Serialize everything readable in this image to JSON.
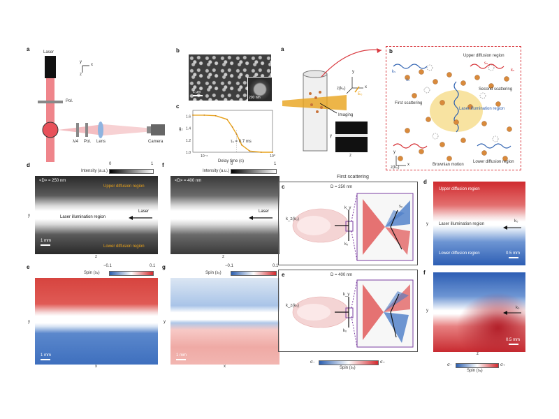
{
  "left_figure": {
    "a": {
      "label": "a",
      "laser": "Laser",
      "pol_top": "Pol.",
      "quarter_wave": "λ/4",
      "pol": "Pol.",
      "lens": "Lens",
      "camera": "Camera",
      "axis_y": "y",
      "axis_x": "x",
      "axis_z": "z"
    },
    "b": {
      "label": "b",
      "scale_main": "1 μm",
      "scale_inset": "200 nm"
    },
    "c": {
      "label": "c",
      "ylabel": "g₂",
      "xlabel": "Delay time (s)",
      "annotation": "τ₀ = 0.7 ms",
      "yticks": [
        "1.6",
        "1.4",
        "1.2",
        "1.0"
      ],
      "xticks": [
        "10⁻⁶",
        "10⁰"
      ]
    },
    "d": {
      "label": "d",
      "cbar_title": "Intensity (a.u.)",
      "cbar_min": "0",
      "cbar_max": "1",
      "size": "<D> = 250 nm",
      "upper": "Upper diffusion region",
      "laser_region": "Laser illumination region",
      "laser": "Laser",
      "lower": "Lower diffusion region",
      "scale": "1 mm",
      "axis_y": "y",
      "axis_z": "z"
    },
    "f": {
      "label": "f",
      "cbar_title": "Intensity (a.u.)",
      "cbar_min": "0",
      "cbar_max": "1",
      "size": "<D> = 400 nm",
      "laser": "Laser",
      "axis_z": "z"
    },
    "e": {
      "label": "e",
      "cbar_title": "Spin (sₓ)",
      "cbar_min": "−0.1",
      "cbar_max": "0.1",
      "scale": "1 mm",
      "axis_y": "y",
      "axis_x": "x"
    },
    "g": {
      "label": "g",
      "cbar_title": "Spin (sₓ)",
      "cbar_min": "−0.1",
      "cbar_max": "0.1",
      "scale": "1 mm",
      "axis_y": "y",
      "axis_x": "x"
    }
  },
  "right_figure": {
    "a": {
      "label": "a",
      "imaging": "Imaging",
      "axis_x": "x",
      "axis_y": "y",
      "axis_z": "z",
      "z_k0": "z(k₀)",
      "e0": "E₀",
      "img_y": "y",
      "img_z": "z"
    },
    "b": {
      "label": "b",
      "upper": "Upper diffusion region",
      "second": "Second scattering",
      "first": "First scattering",
      "laser_region": "Laser illumination region",
      "brownian": "Brownian motion",
      "lower": "Lower diffusion region",
      "ks_left": "kₛ",
      "ss_left": "sₛ",
      "ss_right": "sₛ",
      "ks_right": "kₛ",
      "axis_x": "x",
      "axis_y": "y",
      "axis_z": "z(k₀)"
    },
    "first_scattering_title": "First scattering",
    "c": {
      "label": "c",
      "size": "D = 250 nm",
      "kz": "k_z(k₀)",
      "ky": "k_y",
      "kx": "kₓ",
      "sx": "sₓ"
    },
    "e": {
      "label": "e",
      "size": "D = 400 nm",
      "kz": "k_z(k₀)",
      "ky": "k_y",
      "kx": "kₓ"
    },
    "d": {
      "label": "d",
      "upper": "Upper diffusion region",
      "laser_region": "Laser illumination region",
      "lower": "Lower diffusion region",
      "k0": "k₀",
      "scale": "0.5 mm",
      "axis_y": "y"
    },
    "f": {
      "label": "f",
      "k0": "k₀",
      "scale": "0.5 mm",
      "axis_y": "y",
      "axis_z": "z"
    },
    "cbar_c": {
      "min": "σ₋",
      "max": "σ₊",
      "title": "Spin (sₓ)"
    },
    "cbar_f": {
      "min": "σ₋",
      "max": "σ₊",
      "title": "Spin (sₓ)"
    }
  },
  "colors": {
    "laser_red": "#e8515a",
    "orange": "#e8a21a",
    "blue": "#2b5fb0",
    "red": "#d4282d",
    "frame_red": "#d9393f",
    "purple": "#7a3ea0"
  },
  "chart_data": {
    "type": "line",
    "title": "",
    "xlabel": "Delay time (s)",
    "ylabel": "g₂",
    "xscale": "log",
    "ylim": [
      1.0,
      1.7
    ],
    "series": [
      {
        "x": [
          1e-07,
          1e-06,
          1e-05,
          0.0001,
          0.0003,
          0.0007,
          0.002,
          0.01,
          0.1,
          1
        ],
        "y": [
          1.62,
          1.62,
          1.61,
          1.55,
          1.42,
          1.3,
          1.12,
          1.02,
          1.0,
          1.0
        ]
      }
    ]
  }
}
